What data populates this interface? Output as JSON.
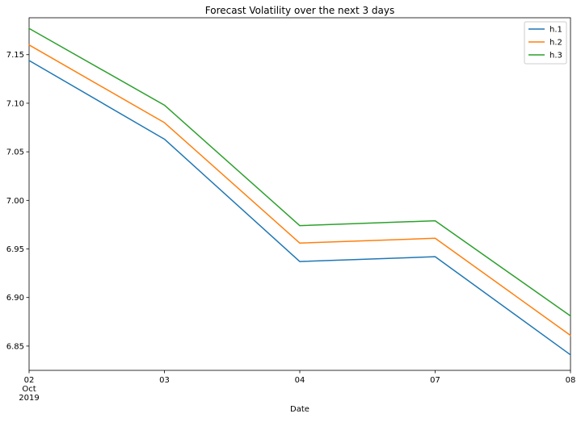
{
  "chart_data": {
    "type": "line",
    "title": "Forecast Volatility over the next 3 days",
    "xlabel": "Date",
    "ylabel": "",
    "x": [
      "2019-10-02",
      "2019-10-03",
      "2019-10-04",
      "2019-10-07",
      "2019-10-08"
    ],
    "x_tick_labels": [
      "02",
      "03",
      "04",
      "07",
      "08"
    ],
    "x_tick_sublabels": [
      "Oct",
      "2019"
    ],
    "ylim": [
      6.825,
      7.188
    ],
    "y_ticks": [
      6.85,
      6.9,
      6.95,
      7.0,
      7.05,
      7.1,
      7.15
    ],
    "y_tick_labels": [
      "6.85",
      "6.90",
      "6.95",
      "7.00",
      "7.05",
      "7.10",
      "7.15"
    ],
    "grid": false,
    "legend_position": "top-right",
    "series": [
      {
        "name": "h.1",
        "color": "#1f77b4",
        "values": [
          7.144,
          7.063,
          6.937,
          6.942,
          6.841
        ]
      },
      {
        "name": "h.2",
        "color": "#ff7f0e",
        "values": [
          7.16,
          7.08,
          6.956,
          6.961,
          6.861
        ]
      },
      {
        "name": "h.3",
        "color": "#2ca02c",
        "values": [
          7.177,
          7.098,
          6.974,
          6.979,
          6.881
        ]
      }
    ]
  }
}
